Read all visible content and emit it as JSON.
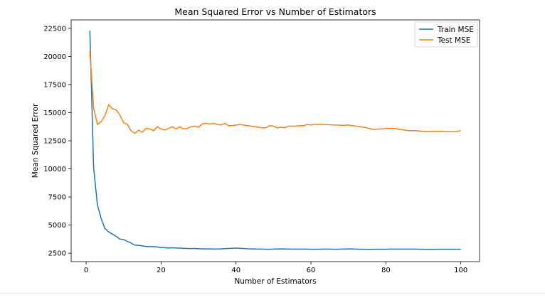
{
  "chart_data": {
    "type": "line",
    "title": "Mean Squared Error vs Number of Estimators",
    "xlabel": "Number of Estimators",
    "ylabel": "Mean Squared Error",
    "xlim": [
      -4,
      105
    ],
    "ylim": [
      1750,
      23250
    ],
    "xticks": [
      0,
      20,
      40,
      60,
      80,
      100
    ],
    "yticks": [
      2500,
      5000,
      7500,
      10000,
      12500,
      15000,
      17500,
      20000,
      22500
    ],
    "grid": false,
    "legend": "top-right",
    "series": [
      {
        "name": "Train MSE",
        "color": "#1f77b4",
        "values": [
          22300,
          10100,
          6800,
          5600,
          4700,
          4400,
          4200,
          4000,
          3750,
          3720,
          3550,
          3400,
          3220,
          3200,
          3150,
          3100,
          3100,
          3080,
          3050,
          3000,
          2980,
          2960,
          2980,
          2970,
          2950,
          2930,
          2920,
          2910,
          2920,
          2900,
          2880,
          2890,
          2880,
          2870,
          2860,
          2880,
          2900,
          2920,
          2940,
          2950,
          2930,
          2920,
          2890,
          2880,
          2870,
          2860,
          2860,
          2850,
          2850,
          2860,
          2870,
          2880,
          2870,
          2860,
          2860,
          2860,
          2860,
          2860,
          2860,
          2850,
          2850,
          2850,
          2860,
          2860,
          2860,
          2850,
          2850,
          2860,
          2860,
          2880,
          2880,
          2860,
          2850,
          2850,
          2840,
          2840,
          2850,
          2850,
          2850,
          2850,
          2860,
          2860,
          2860,
          2860,
          2860,
          2860,
          2860,
          2860,
          2850,
          2850,
          2830,
          2830,
          2840,
          2850,
          2850,
          2850,
          2850,
          2850,
          2850,
          2850
        ]
      },
      {
        "name": "Test MSE",
        "color": "#ff7f0e",
        "values": [
          20500,
          15400,
          13950,
          14200,
          14700,
          15700,
          15350,
          15250,
          14800,
          14100,
          13950,
          13400,
          13150,
          13450,
          13250,
          13600,
          13550,
          13400,
          13750,
          13550,
          13450,
          13600,
          13750,
          13550,
          13750,
          13550,
          13600,
          13750,
          13800,
          13700,
          14000,
          14050,
          14000,
          14050,
          13950,
          13900,
          14050,
          13850,
          13850,
          13900,
          13950,
          13900,
          13850,
          13800,
          13750,
          13700,
          13650,
          13650,
          13850,
          13800,
          13650,
          13700,
          13650,
          13800,
          13800,
          13800,
          13850,
          13850,
          13950,
          13900,
          13950,
          13950,
          13950,
          13930,
          13920,
          13900,
          13900,
          13880,
          13870,
          13900,
          13850,
          13800,
          13750,
          13700,
          13650,
          13550,
          13500,
          13550,
          13550,
          13600,
          13600,
          13600,
          13550,
          13500,
          13450,
          13400,
          13400,
          13400,
          13370,
          13350,
          13330,
          13350,
          13350,
          13350,
          13350,
          13300,
          13320,
          13320,
          13330,
          13400
        ]
      }
    ]
  }
}
